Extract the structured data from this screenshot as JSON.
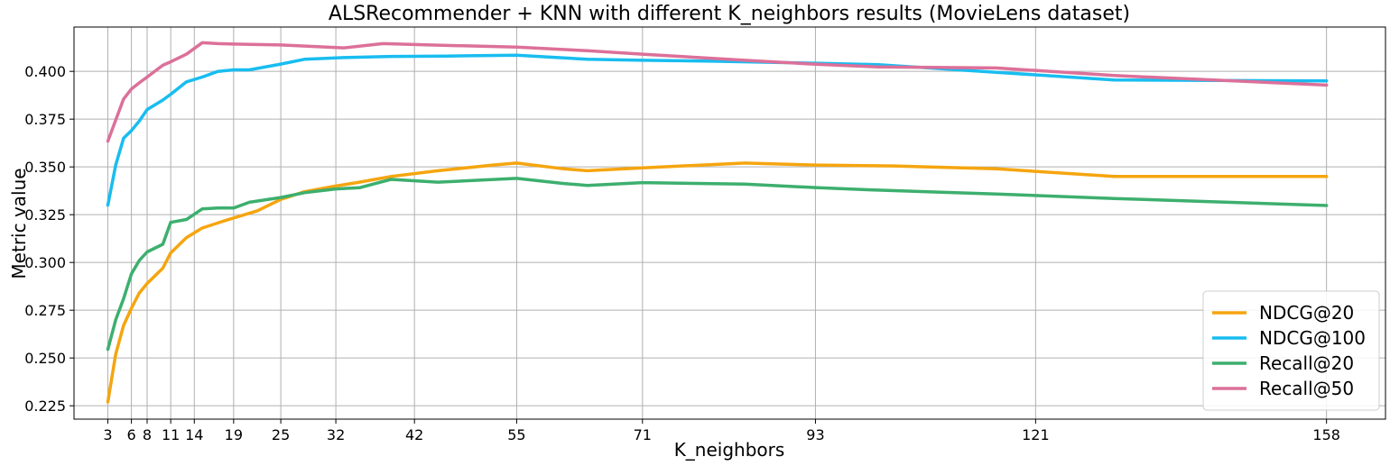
{
  "chart_data": {
    "type": "line",
    "title": "ALSRecommender + KNN with different K_neighbors results (MovieLens dataset)",
    "xlabel": "K_neighbors",
    "ylabel": "Metric value",
    "xlim": [
      -1.3,
      165.5
    ],
    "ylim": [
      0.218,
      0.4232
    ],
    "grid": true,
    "legend_position": "bottom-right",
    "x_tick_labels": [
      "3",
      "6",
      "8",
      "11",
      "14",
      "19",
      "25",
      "32",
      "42",
      "55",
      "71",
      "93",
      "121",
      "158"
    ],
    "y_ticks": [
      0.225,
      0.25,
      0.275,
      0.3,
      0.325,
      0.35,
      0.375,
      0.4
    ],
    "y_tick_labels": [
      "0.225",
      "0.250",
      "0.275",
      "0.300",
      "0.325",
      "0.350",
      "0.375",
      "0.400"
    ],
    "series": [
      {
        "name": "NDCG@20",
        "color": "#f5a50f",
        "points": [
          [
            3,
            0.227
          ],
          [
            4,
            0.252
          ],
          [
            5,
            0.267
          ],
          [
            6,
            0.276
          ],
          [
            7,
            0.284
          ],
          [
            8,
            0.289
          ],
          [
            10,
            0.297
          ],
          [
            11,
            0.305
          ],
          [
            13,
            0.313
          ],
          [
            15,
            0.318
          ],
          [
            18,
            0.322
          ],
          [
            22,
            0.327
          ],
          [
            25,
            0.333
          ],
          [
            28,
            0.337
          ],
          [
            32,
            0.34
          ],
          [
            35,
            0.342
          ],
          [
            39,
            0.345
          ],
          [
            45,
            0.348
          ],
          [
            52,
            0.351
          ],
          [
            55,
            0.352
          ],
          [
            61,
            0.349
          ],
          [
            64,
            0.348
          ],
          [
            71,
            0.3495
          ],
          [
            84,
            0.352
          ],
          [
            93,
            0.351
          ],
          [
            103,
            0.3505
          ],
          [
            116,
            0.349
          ],
          [
            131,
            0.345
          ],
          [
            158,
            0.345
          ]
        ]
      },
      {
        "name": "NDCG@100",
        "color": "#18bdf0",
        "points": [
          [
            3,
            0.33
          ],
          [
            4,
            0.351
          ],
          [
            5,
            0.365
          ],
          [
            6,
            0.369
          ],
          [
            7,
            0.374
          ],
          [
            8,
            0.38
          ],
          [
            10,
            0.385
          ],
          [
            11,
            0.388
          ],
          [
            13,
            0.3945
          ],
          [
            15,
            0.397
          ],
          [
            17,
            0.4
          ],
          [
            19,
            0.4008
          ],
          [
            21,
            0.4008
          ],
          [
            25,
            0.4038
          ],
          [
            28,
            0.4063
          ],
          [
            33,
            0.4072
          ],
          [
            39,
            0.4078
          ],
          [
            46,
            0.408
          ],
          [
            55,
            0.4085
          ],
          [
            64,
            0.4063
          ],
          [
            71,
            0.4058
          ],
          [
            80,
            0.4053
          ],
          [
            93,
            0.4043
          ],
          [
            101,
            0.4035
          ],
          [
            116,
            0.3995
          ],
          [
            131,
            0.3955
          ],
          [
            158,
            0.395
          ]
        ]
      },
      {
        "name": "Recall@20",
        "color": "#3daf6e",
        "points": [
          [
            3,
            0.2545
          ],
          [
            4,
            0.27
          ],
          [
            5,
            0.281
          ],
          [
            6,
            0.294
          ],
          [
            7,
            0.301
          ],
          [
            8,
            0.3055
          ],
          [
            10,
            0.3095
          ],
          [
            11,
            0.321
          ],
          [
            13,
            0.3225
          ],
          [
            15,
            0.328
          ],
          [
            17,
            0.3285
          ],
          [
            19,
            0.3285
          ],
          [
            21,
            0.3315
          ],
          [
            25,
            0.334
          ],
          [
            28,
            0.3365
          ],
          [
            32,
            0.3385
          ],
          [
            35,
            0.3391
          ],
          [
            39,
            0.3435
          ],
          [
            45,
            0.342
          ],
          [
            55,
            0.344
          ],
          [
            61,
            0.3413
          ],
          [
            64,
            0.3403
          ],
          [
            71,
            0.3418
          ],
          [
            84,
            0.341
          ],
          [
            93,
            0.3392
          ],
          [
            100,
            0.338
          ],
          [
            116,
            0.3358
          ],
          [
            131,
            0.3335
          ],
          [
            158,
            0.3298
          ]
        ]
      },
      {
        "name": "Recall@50",
        "color": "#dc7099",
        "points": [
          [
            3,
            0.3635
          ],
          [
            4,
            0.3745
          ],
          [
            5,
            0.3855
          ],
          [
            6,
            0.3908
          ],
          [
            7,
            0.394
          ],
          [
            8,
            0.397
          ],
          [
            10,
            0.4032
          ],
          [
            11,
            0.405
          ],
          [
            13,
            0.409
          ],
          [
            15,
            0.415
          ],
          [
            17,
            0.4145
          ],
          [
            19,
            0.4143
          ],
          [
            25,
            0.4138
          ],
          [
            33,
            0.4123
          ],
          [
            38,
            0.4145
          ],
          [
            45,
            0.4137
          ],
          [
            55,
            0.4127
          ],
          [
            64,
            0.4108
          ],
          [
            71,
            0.409
          ],
          [
            84,
            0.4058
          ],
          [
            93,
            0.4037
          ],
          [
            101,
            0.4023
          ],
          [
            116,
            0.4018
          ],
          [
            131,
            0.3978
          ],
          [
            158,
            0.3928
          ]
        ]
      }
    ]
  }
}
